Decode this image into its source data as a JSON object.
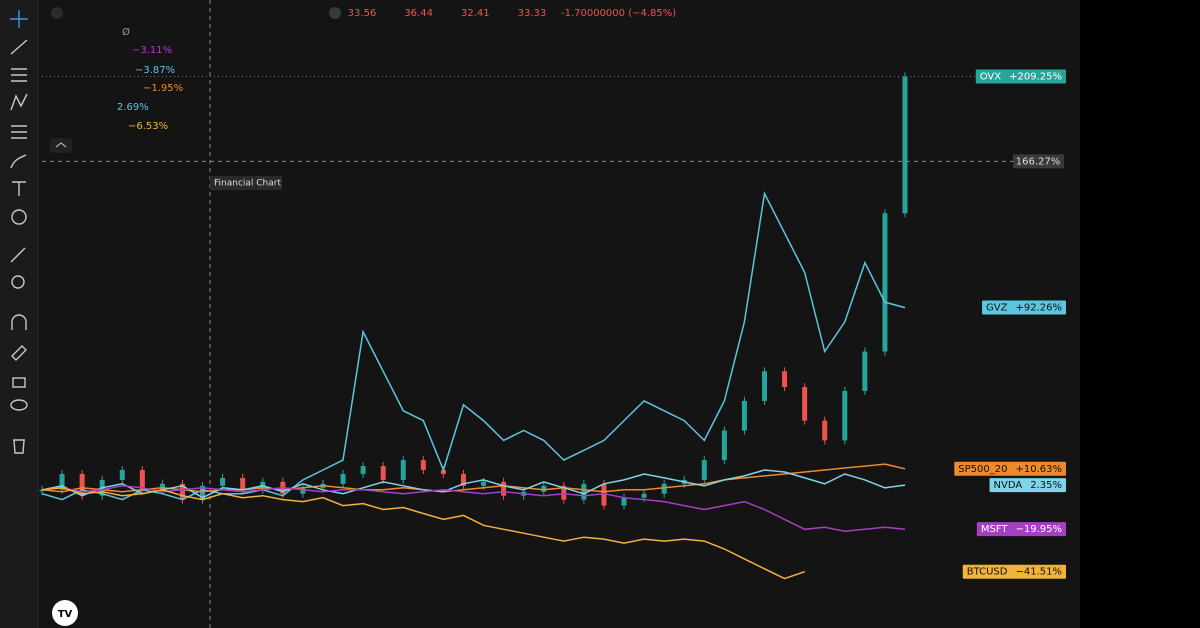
{
  "header": {
    "symbol_mark": "Ø",
    "quote": [
      "33.56",
      "36.44",
      "32.41",
      "33.33",
      "-1.70000000 (−4.85%)"
    ]
  },
  "legend": [
    {
      "text": "−3.11%",
      "color": "#b53bd6"
    },
    {
      "text": "−3.87%",
      "color": "#5bc6e0"
    },
    {
      "text": "−1.95%",
      "color": "#f0892b"
    },
    {
      "text": "2.69%",
      "color": "#5bc6e0"
    },
    {
      "text": "−6.53%",
      "color": "#f2b33a"
    }
  ],
  "tooltip": "Financial Chart",
  "chart_data": {
    "type": "line",
    "ylim": [
      -70,
      248
    ],
    "crosshair": {
      "value": 166.27,
      "label": "166.27%"
    },
    "series": [
      {
        "name": "OVX",
        "label": "+209.25%",
        "style": "candle",
        "color": "#26a69a",
        "down_color": "#ef5350",
        "values": [
          0,
          8,
          -3,
          5,
          10,
          0,
          3,
          -5,
          2,
          6,
          0,
          4,
          -2,
          1,
          3,
          8,
          12,
          5,
          15,
          10,
          8,
          2,
          4,
          -3,
          -1,
          2,
          -5,
          3,
          -8,
          -4,
          -2,
          3,
          5,
          15,
          30,
          45,
          60,
          52,
          35,
          25,
          50,
          70,
          140,
          209.25
        ]
      },
      {
        "name": "GVZ",
        "label": "+92.26%",
        "style": "line",
        "color": "#5bc6e0",
        "values": [
          -2,
          -5,
          0,
          -2,
          -5,
          0,
          -2,
          -5,
          0,
          -2,
          -2,
          0,
          -3,
          5,
          10,
          15,
          80,
          60,
          40,
          35,
          10,
          43,
          35,
          25,
          30,
          25,
          15,
          20,
          25,
          35,
          45,
          40,
          35,
          25,
          45,
          85,
          150,
          130,
          110,
          70,
          85,
          115,
          95,
          92.26
        ]
      },
      {
        "name": "SP500_20",
        "label": "+10.63%",
        "style": "line",
        "color": "#f0892b",
        "values": [
          0,
          -1,
          1,
          0,
          -1,
          0,
          1,
          0,
          -1,
          0,
          0,
          1,
          0,
          1,
          2,
          1,
          0,
          0,
          1,
          0,
          -1,
          0,
          1,
          2,
          1,
          0,
          1,
          0,
          -1,
          0,
          0,
          1,
          2,
          3,
          5,
          6,
          7,
          8,
          9,
          10,
          11,
          12,
          13,
          10.63
        ]
      },
      {
        "name": "NVDA",
        "label": "2.35%",
        "style": "line",
        "color": "#7fd3ea",
        "values": [
          0,
          2,
          -3,
          1,
          3,
          -2,
          0,
          2,
          -4,
          1,
          0,
          2,
          -1,
          3,
          0,
          -2,
          1,
          4,
          2,
          0,
          -1,
          3,
          5,
          2,
          0,
          4,
          1,
          -2,
          3,
          5,
          8,
          6,
          4,
          2,
          5,
          7,
          10,
          9,
          6,
          3,
          8,
          5,
          1,
          2.35
        ]
      },
      {
        "name": "MSFT",
        "label": "−19.95%",
        "style": "line",
        "color": "#a63fc4",
        "values": [
          0,
          1,
          -1,
          0,
          2,
          1,
          -1,
          0,
          1,
          0,
          -1,
          0,
          1,
          0,
          -1,
          0,
          0,
          -1,
          -2,
          -1,
          0,
          -1,
          -2,
          -1,
          -2,
          -3,
          -2,
          -3,
          -2,
          -4,
          -5,
          -6,
          -8,
          -10,
          -8,
          -6,
          -10,
          -15,
          -20,
          -19,
          -21,
          -20,
          -19,
          -19.95
        ]
      },
      {
        "name": "BTCUSD",
        "label": "−41.51%",
        "style": "line",
        "color": "#f2b33a",
        "values": [
          0,
          1,
          -2,
          -1,
          -3,
          -2,
          0,
          -3,
          -5,
          -2,
          -4,
          -3,
          -5,
          -6,
          -4,
          -8,
          -7,
          -10,
          -9,
          -12,
          -15,
          -13,
          -18,
          -20,
          -22,
          -24,
          -26,
          -24,
          -25,
          -27,
          -25,
          -26,
          -25,
          -26,
          -30,
          -35,
          -40,
          -45,
          -41.51,
          null,
          null,
          null,
          null,
          null
        ]
      }
    ]
  }
}
